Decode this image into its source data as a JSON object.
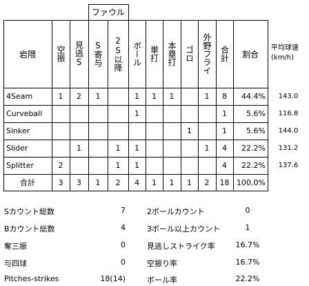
{
  "table": {
    "group_header": "ファウル",
    "headers": [
      "岩隈",
      "空振",
      "見逃S",
      "S寄与",
      "2S以降",
      "ボール",
      "単打",
      "本塁打",
      "ゴロ",
      "外野フライ",
      "合計",
      "割合"
    ],
    "speed_header": "平均球速\n(km/h)",
    "rows": [
      {
        "pitch": "4Seam",
        "cells": [
          "1",
          "2",
          "1",
          "",
          "1",
          "1",
          "1",
          "",
          "1",
          "8",
          "44.4%"
        ],
        "speed": "143.0"
      },
      {
        "pitch": "Curveball",
        "cells": [
          "",
          "",
          "",
          "",
          "1",
          "",
          "",
          "",
          "",
          "1",
          "5.6%"
        ],
        "speed": "116.8"
      },
      {
        "pitch": "Sinker",
        "cells": [
          "",
          "",
          "",
          "",
          "",
          "",
          "",
          "1",
          "",
          "1",
          "5.6%"
        ],
        "speed": "144.0"
      },
      {
        "pitch": "Slider",
        "cells": [
          "",
          "1",
          "",
          "1",
          "1",
          "",
          "",
          "",
          "1",
          "4",
          "22.2%"
        ],
        "speed": "131.2"
      },
      {
        "pitch": "Splitter",
        "cells": [
          "2",
          "",
          "",
          "1",
          "1",
          "",
          "",
          "",
          "",
          "4",
          "22.2%"
        ],
        "speed": "137.6"
      },
      {
        "pitch": "合計",
        "cells": [
          "3",
          "3",
          "1",
          "2",
          "4",
          "1",
          "1",
          "1",
          "2",
          "18",
          "100.0%"
        ],
        "speed": ""
      }
    ]
  },
  "summary": {
    "left": [
      {
        "label": "Sカウント総数",
        "value": "7"
      },
      {
        "label": "Bカウント総数",
        "value": "4"
      },
      {
        "label": "奪三振",
        "value": "0"
      },
      {
        "label": "与四球",
        "value": "0"
      },
      {
        "label": "Pitches-strikes",
        "value": "18(14)"
      }
    ],
    "right": [
      {
        "label": "2ボールカウント",
        "value": "0"
      },
      {
        "label": "3ボール以上カウント",
        "value": "1"
      },
      {
        "label": "見逃しストライク率",
        "value": "16.7%"
      },
      {
        "label": "空振り率",
        "value": "16.7%"
      },
      {
        "label": "ボール率",
        "value": "22.2%"
      }
    ]
  }
}
